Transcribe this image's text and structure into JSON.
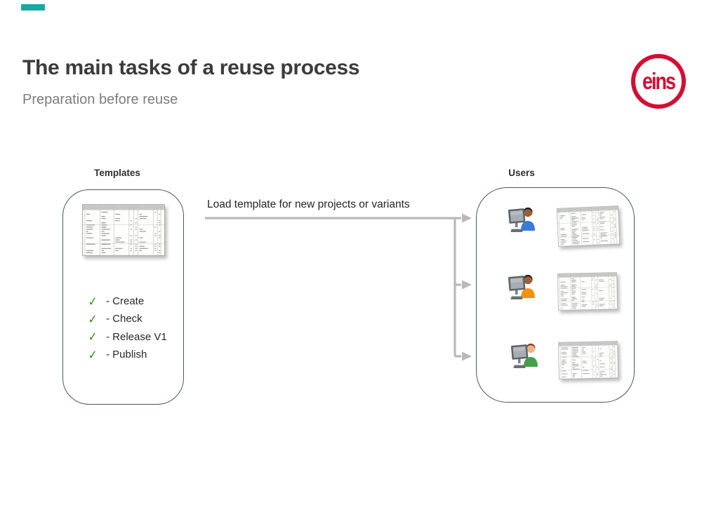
{
  "slide": {
    "accent_bar_color": "#18a7a2",
    "title": "The main tasks of a reuse process",
    "subtitle": "Preparation before reuse"
  },
  "logo": {
    "text": "eins",
    "color": "#d40e33"
  },
  "templates": {
    "label": "Templates",
    "thumbnail": "spreadsheet-thumbnail",
    "check_color": "#3f9122",
    "checklist": [
      {
        "check": "✓",
        "text": "- Create"
      },
      {
        "check": "✓",
        "text": "- Check"
      },
      {
        "check": "✓",
        "text": "- Release V1"
      },
      {
        "check": "✓",
        "text": "- Publish"
      }
    ]
  },
  "flow": {
    "arrow_label": "Load template for new projects or variants",
    "arrow_color": "#b9b9b9"
  },
  "users": {
    "label": "Users",
    "rows": [
      {
        "icon": "user-at-computer-icon",
        "sheet": "spreadsheet-thumbnail",
        "shirt": "#3a7ad9",
        "skin": "#9c5f33",
        "hair": "#1c1c1c"
      },
      {
        "icon": "user-at-computer-icon",
        "sheet": "spreadsheet-thumbnail",
        "shirt": "#f0930c",
        "skin": "#9c5f33",
        "hair": "#241f1c"
      },
      {
        "icon": "user-at-computer-icon",
        "sheet": "spreadsheet-thumbnail",
        "shirt": "#43a047",
        "skin": "#eab487",
        "hair": "#8e3b20"
      }
    ]
  }
}
